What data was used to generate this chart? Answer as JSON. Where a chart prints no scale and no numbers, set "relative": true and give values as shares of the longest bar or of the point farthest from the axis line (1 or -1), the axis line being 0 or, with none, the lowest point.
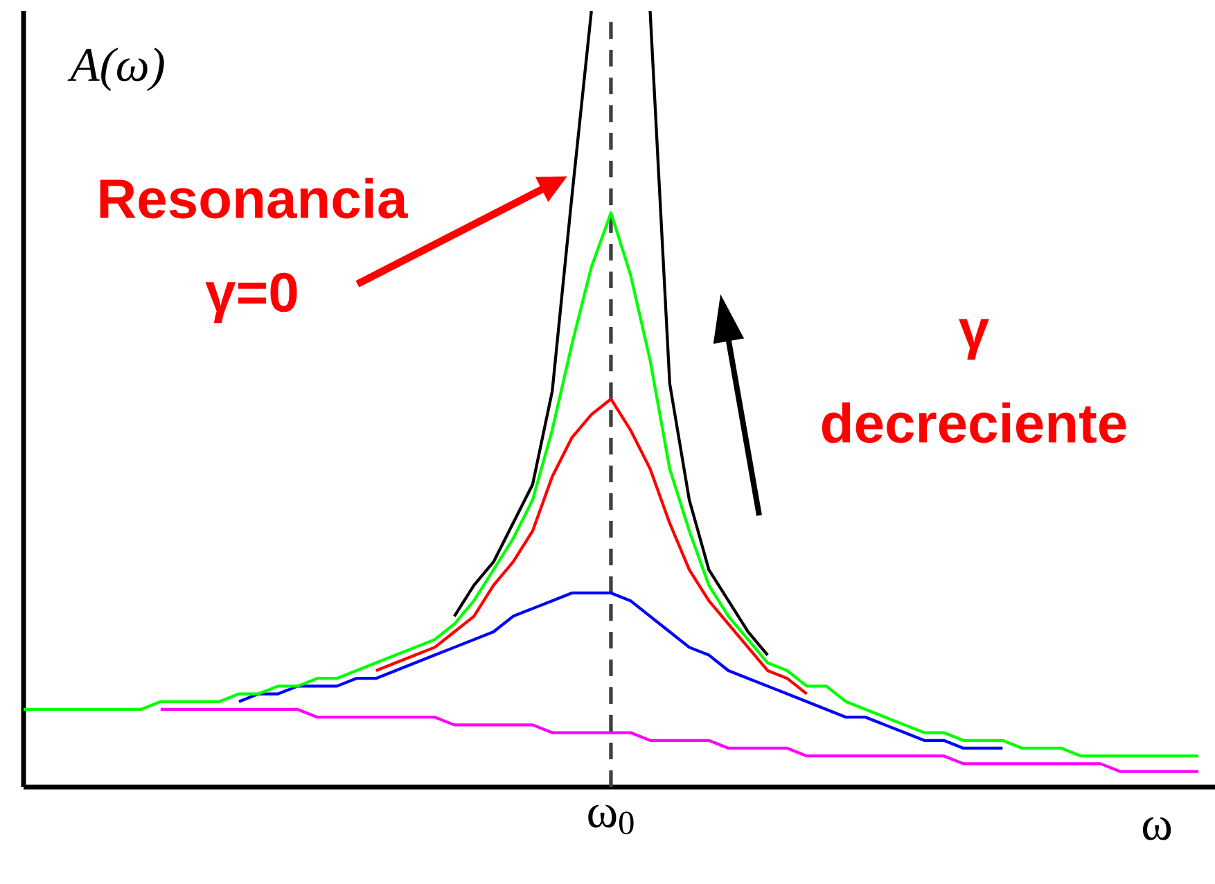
{
  "chart_data": {
    "type": "line",
    "relative": true,
    "xlabel": "ω",
    "ylabel": "A(ω)",
    "categories": [
      null,
      null,
      null,
      null,
      null,
      null,
      null,
      null,
      null,
      null,
      null,
      null,
      null,
      null,
      null,
      null,
      null,
      null,
      null,
      null,
      null,
      null,
      null,
      null,
      null,
      null,
      null,
      null,
      null,
      null,
      null,
      null,
      null,
      null,
      null,
      null,
      null,
      null,
      null,
      null,
      null,
      null,
      null,
      null,
      null,
      null,
      null,
      null,
      null,
      null,
      null,
      null,
      null,
      null,
      null,
      null,
      null,
      null,
      null,
      null,
      null
    ],
    "series": [
      {
        "color": "#000000",
        "values": [
          null,
          null,
          null,
          null,
          null,
          null,
          null,
          null,
          null,
          null,
          null,
          null,
          null,
          null,
          null,
          null,
          null,
          null,
          null,
          null,
          null,
          null,
          0.22,
          0.26,
          0.29,
          0.34,
          0.39,
          0.51,
          0.76,
          1.0,
          null,
          null,
          1.0,
          0.52,
          0.37,
          0.28,
          0.24,
          0.2,
          0.17,
          null,
          null,
          null,
          null,
          null,
          null,
          null,
          null,
          null,
          null,
          null,
          null,
          null,
          null,
          null,
          null,
          null,
          null,
          null,
          null,
          null,
          null
        ]
      },
      {
        "color": "#0000ff",
        "values": [
          null,
          null,
          null,
          null,
          null,
          null,
          null,
          null,
          null,
          null,
          null,
          0.11,
          0.12,
          0.12,
          0.13,
          0.13,
          0.13,
          0.14,
          0.14,
          0.15,
          0.16,
          0.17,
          0.18,
          0.19,
          0.2,
          0.22,
          0.23,
          0.24,
          0.25,
          0.25,
          0.25,
          0.24,
          0.22,
          0.2,
          0.18,
          0.17,
          0.15,
          0.14,
          0.13,
          0.12,
          0.11,
          0.1,
          0.09,
          0.09,
          0.08,
          0.07,
          0.06,
          0.06,
          0.05,
          0.05,
          0.05,
          null,
          null,
          null,
          null,
          null,
          null,
          null,
          null,
          null,
          null
        ]
      },
      {
        "color": "#ff0000",
        "values": [
          null,
          null,
          null,
          null,
          null,
          null,
          null,
          null,
          null,
          null,
          null,
          null,
          null,
          null,
          null,
          null,
          null,
          null,
          0.15,
          0.16,
          0.17,
          0.18,
          0.2,
          0.22,
          0.26,
          0.29,
          0.33,
          0.4,
          0.45,
          0.48,
          0.5,
          0.46,
          0.41,
          0.34,
          0.28,
          0.24,
          0.21,
          0.18,
          0.15,
          0.14,
          0.12,
          null,
          null,
          null,
          null,
          null,
          null,
          null,
          null,
          null,
          null,
          null,
          null,
          null,
          null,
          null,
          null,
          null,
          null,
          null,
          null
        ]
      },
      {
        "color": "#ff00ff",
        "values": [
          null,
          null,
          null,
          null,
          null,
          null,
          null,
          0.1,
          0.1,
          0.1,
          0.1,
          0.1,
          0.1,
          0.1,
          0.1,
          0.09,
          0.09,
          0.09,
          0.09,
          0.09,
          0.09,
          0.09,
          0.08,
          0.08,
          0.08,
          0.08,
          0.08,
          0.07,
          0.07,
          0.07,
          0.07,
          0.07,
          0.06,
          0.06,
          0.06,
          0.06,
          0.05,
          0.05,
          0.05,
          0.05,
          0.04,
          0.04,
          0.04,
          0.04,
          0.04,
          0.04,
          0.04,
          0.04,
          0.03,
          0.03,
          0.03,
          0.03,
          0.03,
          0.03,
          0.03,
          0.03,
          0.02,
          0.02,
          0.02,
          0.02,
          0.02
        ]
      },
      {
        "color": "#00ff00",
        "values": [
          0.1,
          0.1,
          0.1,
          0.1,
          0.1,
          0.1,
          0.1,
          0.11,
          0.11,
          0.11,
          0.11,
          0.12,
          0.12,
          0.13,
          0.13,
          0.14,
          0.14,
          0.15,
          0.16,
          0.17,
          0.18,
          0.19,
          0.21,
          0.24,
          0.28,
          0.32,
          0.37,
          0.46,
          0.57,
          0.67,
          0.74,
          0.66,
          0.55,
          0.41,
          0.33,
          0.26,
          0.22,
          0.19,
          0.16,
          0.15,
          0.13,
          0.13,
          0.11,
          0.1,
          0.09,
          0.08,
          0.07,
          0.07,
          0.06,
          0.06,
          0.06,
          0.05,
          0.05,
          0.05,
          0.04,
          0.04,
          0.04,
          0.04,
          0.04,
          0.04,
          0.04
        ]
      }
    ],
    "annotations": [
      "Resonancia",
      "γ=0",
      "γ",
      "decreciente",
      "ω$_{0}$"
    ]
  }
}
